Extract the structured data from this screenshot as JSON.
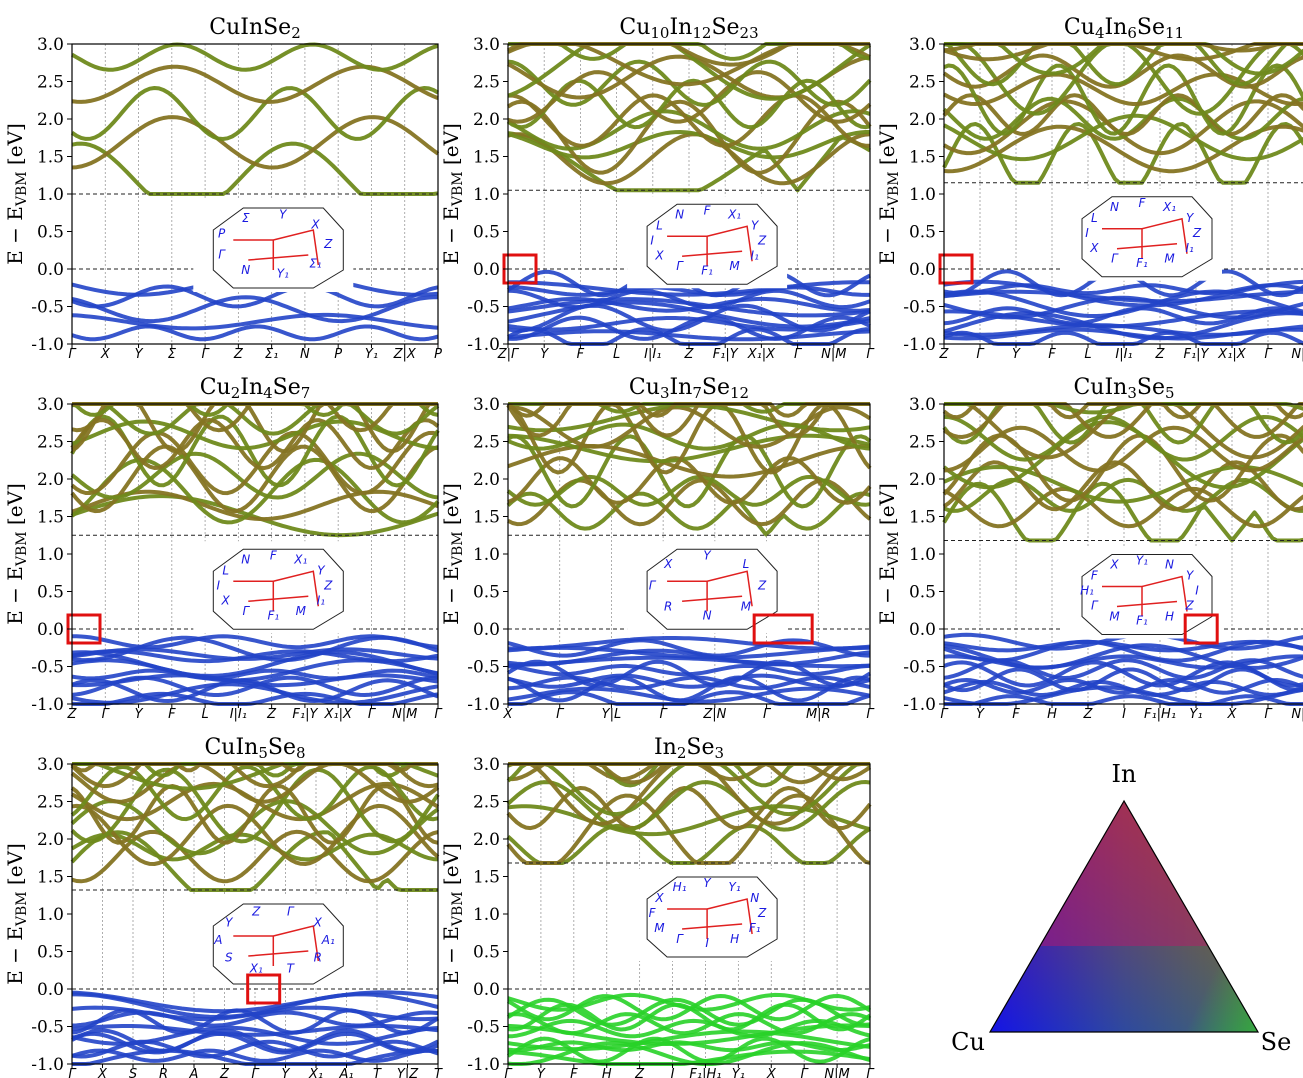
{
  "figure": {
    "ylabel_main": "E − E",
    "ylabel_sub": "VBM",
    "ylabel_unit": " [eV]",
    "yticks": [
      "3.0",
      "2.5",
      "2.0",
      "1.5",
      "1.0",
      "0.5",
      "0.0",
      "-0.5",
      "-1.0"
    ],
    "ylim": [
      -1.0,
      3.0
    ]
  },
  "colors": {
    "cu": "#1414e6",
    "in": "#dc1414",
    "se": "#28d228",
    "conduction": "#6f8a1c",
    "conduction_high": "#857423",
    "valence": "#2244c8",
    "highlight_box": "#e01010",
    "kpath_lines": "#e02020",
    "kpath_labels": "#1a1ae0"
  },
  "chart_data": [
    {
      "type": "line",
      "title_base": "CuInSe",
      "title_sub1": "2",
      "title_mid": "",
      "title_sub2": "",
      "title_end": "",
      "title_sub3": "",
      "xticks": [
        "Γ",
        "X",
        "Y",
        "Σ",
        "Γ",
        "Z",
        "Σ₁",
        "N",
        "P",
        "Y₁",
        "Z|X",
        "P"
      ],
      "gap_eV": 1.0,
      "bz_labels": [
        "Z",
        "Σ₁",
        "Y₁",
        "N",
        "Γ",
        "P",
        "Σ",
        "Y",
        "X"
      ],
      "highlight": false,
      "ylim": [
        -1.0,
        3.0
      ]
    },
    {
      "type": "line",
      "title_base": "Cu",
      "title_sub1": "10",
      "title_mid": "In",
      "title_sub2": "12",
      "title_end": "Se",
      "title_sub3": "23",
      "xticks": [
        "Z|Γ",
        "Y",
        "F",
        "L",
        "I|I₁",
        "Z",
        "F₁|Y",
        "X₁|X",
        "Γ",
        "N|M",
        "Γ"
      ],
      "gap_eV": 1.05,
      "bz_labels": [
        "Z",
        "I₁",
        "M",
        "F₁",
        "Γ",
        "X",
        "I",
        "L",
        "N",
        "F",
        "X₁",
        "Y"
      ],
      "highlight": true,
      "ylim": [
        -1.0,
        3.0
      ]
    },
    {
      "type": "line",
      "title_base": "Cu",
      "title_sub1": "4",
      "title_mid": "In",
      "title_sub2": "6",
      "title_end": "Se",
      "title_sub3": "11",
      "xticks": [
        "Z",
        "Γ",
        "Y",
        "F",
        "L",
        "I|I₁",
        "Z",
        "F₁|Y",
        "X₁|X",
        "Γ",
        "N|M"
      ],
      "gap_eV": 1.15,
      "bz_labels": [
        "Z",
        "I₁",
        "M",
        "F₁",
        "Γ",
        "X",
        "I",
        "L",
        "N",
        "F",
        "X₁",
        "Y"
      ],
      "highlight": true,
      "ylim": [
        -1.0,
        3.0
      ]
    },
    {
      "type": "line",
      "title_base": "Cu",
      "title_sub1": "2",
      "title_mid": "In",
      "title_sub2": "4",
      "title_end": "Se",
      "title_sub3": "7",
      "xticks": [
        "Z",
        "Γ",
        "Y",
        "F",
        "L",
        "I|I₁",
        "Z",
        "F₁|Y",
        "X₁|X",
        "Γ",
        "N|M",
        "Γ"
      ],
      "gap_eV": 1.25,
      "bz_labels": [
        "Z",
        "I₁",
        "M",
        "F₁",
        "Γ",
        "X",
        "I",
        "L",
        "N",
        "F",
        "X₁",
        "Y"
      ],
      "highlight": true,
      "ylim": [
        -1.0,
        3.0
      ]
    },
    {
      "type": "line",
      "title_base": "Cu",
      "title_sub1": "3",
      "title_mid": "In",
      "title_sub2": "7",
      "title_end": "Se",
      "title_sub3": "12",
      "xticks": [
        "X",
        "Γ",
        "Y|L",
        "Γ",
        "Z|N",
        "Γ",
        "M|R",
        "Γ"
      ],
      "gap_eV": 1.25,
      "bz_labels": [
        "Z",
        "M",
        "N",
        "R",
        "Γ",
        "X",
        "Y",
        "L"
      ],
      "highlight": true,
      "ylim": [
        -1.0,
        3.0
      ]
    },
    {
      "type": "line",
      "title_base": "CuIn",
      "title_sub1": "3",
      "title_mid": "Se",
      "title_sub2": "5",
      "title_end": "",
      "title_sub3": "",
      "xticks": [
        "Γ",
        "Y",
        "F",
        "H",
        "Z",
        "I",
        "F₁|H₁",
        "Y₁",
        "X",
        "Γ",
        "N|M"
      ],
      "gap_eV": 1.18,
      "bz_labels": [
        "I",
        "Z",
        "H",
        "F₁",
        "M",
        "Γ",
        "H₁",
        "F",
        "X",
        "Y₁",
        "N",
        "Y"
      ],
      "highlight": true,
      "ylim": [
        -1.0,
        3.0
      ]
    },
    {
      "type": "line",
      "title_base": "CuIn",
      "title_sub1": "5",
      "title_mid": "Se",
      "title_sub2": "8",
      "title_end": "",
      "title_sub3": "",
      "xticks": [
        "Γ",
        "X",
        "S",
        "R",
        "A",
        "Z",
        "Γ",
        "Y",
        "X₁",
        "A₁",
        "T",
        "Y|Z",
        "T"
      ],
      "gap_eV": 1.32,
      "bz_labels": [
        "A₁",
        "R",
        "T",
        "X₁",
        "S",
        "A",
        "Y",
        "Z",
        "Γ",
        "X"
      ],
      "highlight": true,
      "ylim": [
        -1.0,
        3.0
      ]
    },
    {
      "type": "line",
      "title_base": "In",
      "title_sub1": "2",
      "title_mid": "Se",
      "title_sub2": "3",
      "title_end": "",
      "title_sub3": "",
      "xticks": [
        "Γ",
        "Y",
        "F",
        "H",
        "Z",
        "I",
        "F₁|H₁",
        "Y₁",
        "X",
        "Γ",
        "N|M",
        "Γ"
      ],
      "gap_eV": 1.68,
      "bz_labels": [
        "Z",
        "F₁",
        "H",
        "I",
        "Γ",
        "M",
        "F",
        "X",
        "H₁",
        "Y",
        "Y₁",
        "N"
      ],
      "highlight": false,
      "ylim": [
        -1.0,
        3.0
      ]
    }
  ],
  "legend_triangle": {
    "top": "In",
    "left": "Cu",
    "right": "Se"
  }
}
